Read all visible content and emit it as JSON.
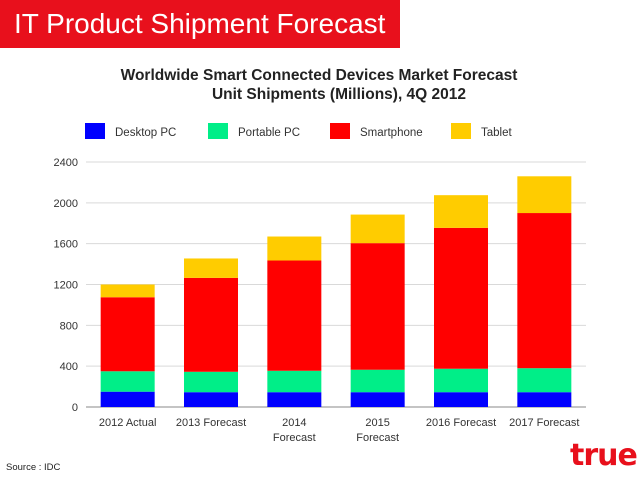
{
  "slide": {
    "title": "IT Product Shipment Forecast",
    "source": "Source : IDC",
    "logo_text": "true",
    "accent_color": "#e8101c"
  },
  "chart_data": {
    "type": "bar",
    "stacked": true,
    "title_line1": "Worldwide Smart Connected Devices Market Forecast",
    "title_line2": "Unit Shipments (Millions), 4Q 2012",
    "categories": [
      "2012 Actual",
      "2013 Forecast",
      "2014 Forecast",
      "2015 Forecast",
      "2016 Forecast",
      "2017 Forecast"
    ],
    "series": [
      {
        "name": "Desktop PC",
        "color": "#0000ff",
        "values": [
          150,
          145,
          145,
          145,
          145,
          145
        ]
      },
      {
        "name": "Portable PC",
        "color": "#00ee88",
        "values": [
          200,
          200,
          210,
          220,
          230,
          235
        ]
      },
      {
        "name": "Smartphone",
        "color": "#ff0000",
        "values": [
          725,
          920,
          1080,
          1240,
          1380,
          1520
        ]
      },
      {
        "name": "Tablet",
        "color": "#ffcc00",
        "values": [
          125,
          190,
          235,
          280,
          320,
          360
        ]
      }
    ],
    "yticks": [
      0,
      400,
      800,
      1200,
      1600,
      2000,
      2400
    ],
    "ylim": [
      0,
      2400
    ],
    "grid": true,
    "legend_position": "top"
  }
}
